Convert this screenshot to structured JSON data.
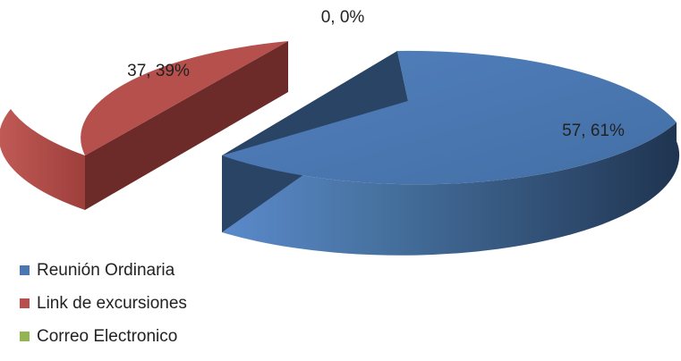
{
  "chart_data": {
    "type": "pie",
    "subtype": "3d-exploded",
    "categories": [
      "Reunión Ordinaria",
      "Link de excursiones",
      "Correo Electronico"
    ],
    "values": [
      57,
      37,
      0
    ],
    "percentages": [
      61,
      39,
      0
    ],
    "data_labels": [
      "57, 61%",
      "37, 39%",
      "0, 0%"
    ],
    "colors": [
      "#4a78b3",
      "#b5504d",
      "#93b553"
    ],
    "legend_position": "bottom-left"
  }
}
